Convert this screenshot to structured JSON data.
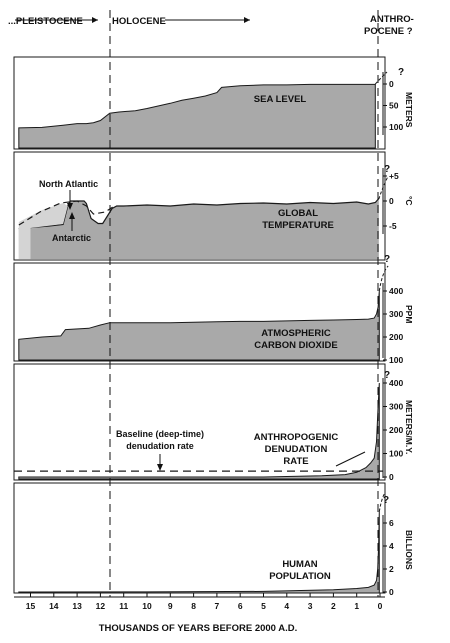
{
  "eras": [
    {
      "label": "...PLEISTOCENE"
    },
    {
      "label": "HOLOCENE"
    },
    {
      "label": "ANTHRO-"
    },
    {
      "label": "POCENE ?"
    }
  ],
  "question_mark": "?",
  "colors": {
    "fill": "#a9a9a9",
    "stroke": "#1a1a1a",
    "light_fill": "#d4d4d4"
  },
  "chart_data": [
    {
      "type": "area",
      "label": "SEA LEVEL",
      "unit": "METERS",
      "y_inverted": true,
      "ylim": [
        0,
        120
      ],
      "ticks": [
        "0",
        "50",
        "100"
      ],
      "x": [
        15.5,
        14.5,
        13.6,
        13.0,
        12.6,
        12.3,
        12.0,
        11.6,
        11.2,
        10.5,
        10.0,
        9.0,
        8.5,
        8.0,
        7.5,
        7.0,
        6.8,
        6.0,
        5.0,
        4.0,
        3.0,
        2.0,
        1.0,
        0.5,
        0.2
      ],
      "y": [
        102,
        101,
        96,
        92,
        92,
        90,
        85,
        68,
        65,
        62,
        57,
        45,
        38,
        33,
        28,
        20,
        8,
        4,
        2,
        2,
        1,
        1,
        1,
        1,
        1
      ]
    },
    {
      "type": "line",
      "label_lines": [
        "GLOBAL",
        "TEMPERATURE"
      ],
      "unit": "°C",
      "ylim": [
        -9,
        7
      ],
      "ticks": [
        "+5",
        "0",
        "-5"
      ],
      "annotations": [
        "North Atlantic",
        "Antarctic"
      ],
      "x": [
        15.5,
        14.2,
        13.6,
        13.4,
        13.3,
        13.0,
        12.7,
        12.6,
        12.4,
        12.1,
        11.9,
        11.7,
        11.5,
        11.3,
        11.0,
        10.0,
        9.0,
        8.0,
        7.0,
        6.0,
        5.0,
        4.0,
        3.0,
        2.0,
        1.0,
        0.5,
        0.2,
        0.05
      ],
      "y": [
        -5.5,
        -5.0,
        -4.7,
        -1.0,
        0.0,
        0.0,
        0.0,
        -0.5,
        -3.5,
        -4.5,
        -4.5,
        -3.0,
        -1.5,
        -1.0,
        -1.0,
        -0.8,
        -1.0,
        -0.6,
        -0.8,
        -0.5,
        -0.4,
        -0.6,
        -0.3,
        -0.5,
        -0.2,
        -0.6,
        -0.3,
        0.5
      ]
    },
    {
      "type": "area",
      "label_lines": [
        "ATMOSPHERIC",
        "CARBON DIOXIDE"
      ],
      "unit": "PPM",
      "ylim": [
        100,
        430
      ],
      "ticks": [
        "400",
        "300",
        "200",
        "100"
      ],
      "x": [
        15.5,
        14.5,
        13.7,
        13.5,
        12.5,
        12.0,
        11.6,
        11.0,
        10.0,
        9.0,
        8.0,
        7.0,
        6.0,
        5.0,
        4.0,
        3.0,
        2.0,
        1.0,
        0.5,
        0.25,
        0.15,
        0.08,
        0.03
      ],
      "y": [
        190,
        200,
        205,
        232,
        238,
        252,
        262,
        262,
        262,
        262,
        264,
        266,
        268,
        268,
        270,
        272,
        274,
        276,
        278,
        282,
        300,
        330,
        400
      ]
    },
    {
      "type": "area",
      "label_lines": [
        "ANTHROPOGENIC",
        "DENUDATION",
        "RATE"
      ],
      "unit": "METERS/M.Y.",
      "ylim": [
        0,
        420
      ],
      "ticks": [
        "400",
        "300",
        "200",
        "100",
        "0"
      ],
      "baseline_label": [
        "Baseline (deep-time)",
        "denudation rate"
      ],
      "baseline_value": 25,
      "x": [
        15.5,
        5.0,
        2.5,
        1.5,
        1.0,
        0.6,
        0.4,
        0.25,
        0.15,
        0.08,
        0.03
      ],
      "y": [
        0,
        0,
        5,
        10,
        20,
        40,
        60,
        80,
        150,
        300,
        400
      ]
    },
    {
      "type": "area",
      "label_lines": [
        "HUMAN",
        "POPULATION"
      ],
      "unit": "BILLIONS",
      "ylim": [
        0,
        8
      ],
      "ticks": [
        "6",
        "4",
        "2",
        "0"
      ],
      "x": [
        15.5,
        10.0,
        5.0,
        2.0,
        1.0,
        0.5,
        0.25,
        0.15,
        0.1,
        0.06,
        0.03
      ],
      "y": [
        0,
        0.01,
        0.05,
        0.2,
        0.3,
        0.4,
        0.6,
        1.0,
        2.0,
        4.0,
        7.0
      ]
    }
  ],
  "x_axis": {
    "ticks": [
      "15",
      "14",
      "13",
      "12",
      "11",
      "10",
      "9",
      "8",
      "7",
      "6",
      "5",
      "4",
      "3",
      "2",
      "1",
      "0"
    ],
    "title": "THOUSANDS OF YEARS BEFORE 2000 A.D."
  }
}
